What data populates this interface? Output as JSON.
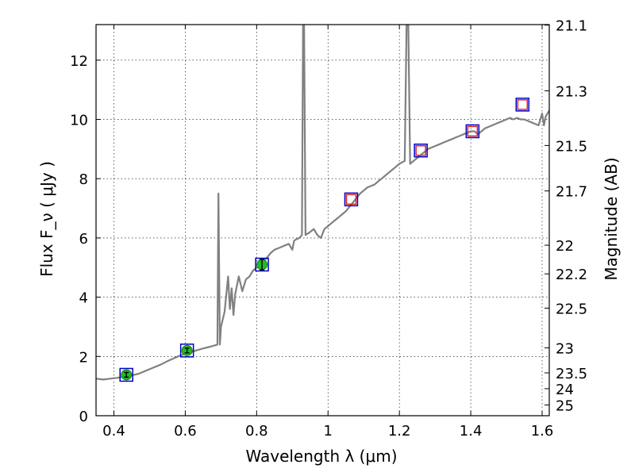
{
  "chart_data": {
    "type": "line",
    "xlabel": "Wavelength  λ (μm)",
    "ylabel": "Flux  F_ν  ( μJy )",
    "ylabel_right": "Magnitude (AB)",
    "xlim": [
      0.35,
      1.62
    ],
    "ylim": [
      0,
      13.2
    ],
    "grid": true,
    "x_ticks": [
      0.4,
      0.6,
      0.8,
      1.0,
      1.2,
      1.4,
      1.6
    ],
    "x_tick_labels": [
      "0.4",
      "0.6",
      "0.8",
      "1",
      "1.2",
      "1.4",
      "1.6"
    ],
    "y_ticks": [
      0,
      2,
      4,
      6,
      8,
      10,
      12
    ],
    "y_tick_labels": [
      "0",
      "2",
      "4",
      "6",
      "8",
      "10",
      "12"
    ],
    "right_ticks": [
      {
        "label": "21.1",
        "mag": 21.1
      },
      {
        "label": "21.3",
        "mag": 21.3
      },
      {
        "label": "21.5",
        "mag": 21.5
      },
      {
        "label": "21.7",
        "mag": 21.7
      },
      {
        "label": "22",
        "mag": 22.0
      },
      {
        "label": "22.2",
        "mag": 22.2
      },
      {
        "label": "22.5",
        "mag": 22.5
      },
      {
        "label": "23",
        "mag": 23.0
      },
      {
        "label": "23.5",
        "mag": 23.5
      },
      {
        "label": "24",
        "mag": 24.0
      },
      {
        "label": "25",
        "mag": 25.0
      }
    ],
    "series": [
      {
        "type": "line",
        "color": "#808080",
        "points": [
          [
            0.35,
            1.25
          ],
          [
            0.37,
            1.22
          ],
          [
            0.39,
            1.25
          ],
          [
            0.41,
            1.28
          ],
          [
            0.43,
            1.32
          ],
          [
            0.45,
            1.36
          ],
          [
            0.47,
            1.42
          ],
          [
            0.49,
            1.52
          ],
          [
            0.51,
            1.62
          ],
          [
            0.53,
            1.72
          ],
          [
            0.55,
            1.84
          ],
          [
            0.57,
            1.95
          ],
          [
            0.59,
            2.05
          ],
          [
            0.61,
            2.12
          ],
          [
            0.63,
            2.2
          ],
          [
            0.65,
            2.27
          ],
          [
            0.67,
            2.33
          ],
          [
            0.685,
            2.38
          ],
          [
            0.69,
            2.4
          ],
          [
            0.693,
            7.5
          ],
          [
            0.697,
            2.4
          ],
          [
            0.7,
            3.0
          ],
          [
            0.71,
            3.5
          ],
          [
            0.72,
            4.7
          ],
          [
            0.725,
            3.6
          ],
          [
            0.73,
            4.3
          ],
          [
            0.735,
            3.4
          ],
          [
            0.74,
            4.1
          ],
          [
            0.75,
            4.7
          ],
          [
            0.76,
            4.2
          ],
          [
            0.77,
            4.6
          ],
          [
            0.78,
            4.7
          ],
          [
            0.79,
            4.9
          ],
          [
            0.8,
            5.0
          ],
          [
            0.81,
            5.1
          ],
          [
            0.82,
            5.2
          ],
          [
            0.83,
            5.35
          ],
          [
            0.84,
            5.5
          ],
          [
            0.85,
            5.6
          ],
          [
            0.86,
            5.65
          ],
          [
            0.87,
            5.7
          ],
          [
            0.88,
            5.75
          ],
          [
            0.89,
            5.8
          ],
          [
            0.9,
            5.6
          ],
          [
            0.905,
            5.9
          ],
          [
            0.91,
            5.95
          ],
          [
            0.92,
            6.0
          ],
          [
            0.927,
            6.1
          ],
          [
            0.93,
            13.2
          ],
          [
            0.933,
            13.2
          ],
          [
            0.937,
            6.1
          ],
          [
            0.95,
            6.2
          ],
          [
            0.96,
            6.3
          ],
          [
            0.97,
            6.1
          ],
          [
            0.98,
            6.0
          ],
          [
            0.99,
            6.3
          ],
          [
            1.0,
            6.4
          ],
          [
            1.01,
            6.5
          ],
          [
            1.02,
            6.6
          ],
          [
            1.03,
            6.7
          ],
          [
            1.04,
            6.8
          ],
          [
            1.05,
            6.9
          ],
          [
            1.06,
            7.05
          ],
          [
            1.07,
            7.2
          ],
          [
            1.08,
            7.35
          ],
          [
            1.09,
            7.5
          ],
          [
            1.1,
            7.6
          ],
          [
            1.11,
            7.7
          ],
          [
            1.12,
            7.75
          ],
          [
            1.13,
            7.8
          ],
          [
            1.14,
            7.9
          ],
          [
            1.15,
            8.0
          ],
          [
            1.16,
            8.1
          ],
          [
            1.17,
            8.2
          ],
          [
            1.18,
            8.3
          ],
          [
            1.19,
            8.4
          ],
          [
            1.2,
            8.5
          ],
          [
            1.215,
            8.6
          ],
          [
            1.22,
            13.2
          ],
          [
            1.225,
            13.2
          ],
          [
            1.23,
            8.5
          ],
          [
            1.24,
            8.6
          ],
          [
            1.25,
            8.7
          ],
          [
            1.26,
            8.8
          ],
          [
            1.27,
            8.9
          ],
          [
            1.28,
            9.0
          ],
          [
            1.29,
            9.05
          ],
          [
            1.3,
            9.1
          ],
          [
            1.31,
            9.15
          ],
          [
            1.32,
            9.2
          ],
          [
            1.33,
            9.25
          ],
          [
            1.34,
            9.3
          ],
          [
            1.35,
            9.35
          ],
          [
            1.36,
            9.4
          ],
          [
            1.37,
            9.45
          ],
          [
            1.38,
            9.5
          ],
          [
            1.39,
            9.55
          ],
          [
            1.4,
            9.6
          ],
          [
            1.41,
            9.6
          ],
          [
            1.42,
            9.5
          ],
          [
            1.43,
            9.6
          ],
          [
            1.44,
            9.7
          ],
          [
            1.45,
            9.75
          ],
          [
            1.46,
            9.8
          ],
          [
            1.47,
            9.85
          ],
          [
            1.48,
            9.9
          ],
          [
            1.49,
            9.95
          ],
          [
            1.5,
            10.0
          ],
          [
            1.51,
            10.05
          ],
          [
            1.52,
            10.0
          ],
          [
            1.53,
            10.05
          ],
          [
            1.54,
            10.0
          ],
          [
            1.55,
            10.0
          ],
          [
            1.56,
            9.95
          ],
          [
            1.57,
            9.9
          ],
          [
            1.58,
            9.85
          ],
          [
            1.59,
            9.8
          ],
          [
            1.6,
            10.2
          ],
          [
            1.605,
            9.8
          ],
          [
            1.61,
            10.1
          ],
          [
            1.62,
            10.3
          ]
        ]
      },
      {
        "type": "scatter",
        "marker": "circle",
        "color": "#22bb22",
        "edge": "#1a7a1a",
        "points": [
          {
            "x": 0.435,
            "y": 1.38,
            "err": 0.08
          },
          {
            "x": 0.605,
            "y": 2.2,
            "err": 0.08
          },
          {
            "x": 0.815,
            "y": 5.1,
            "err": 0.18
          }
        ]
      },
      {
        "type": "scatter",
        "marker": "square",
        "color": "#0000cc",
        "points": [
          {
            "x": 0.435,
            "y": 1.38
          },
          {
            "x": 0.605,
            "y": 2.2
          },
          {
            "x": 0.815,
            "y": 5.1
          },
          {
            "x": 1.065,
            "y": 7.3
          },
          {
            "x": 1.26,
            "y": 8.95
          },
          {
            "x": 1.405,
            "y": 9.6
          },
          {
            "x": 1.545,
            "y": 10.5
          }
        ]
      },
      {
        "type": "scatter",
        "marker": "square",
        "color": "#dd2222",
        "points": [
          {
            "x": 1.065,
            "y": 7.3
          },
          {
            "x": 1.26,
            "y": 8.95
          },
          {
            "x": 1.405,
            "y": 9.6
          },
          {
            "x": 1.545,
            "y": 10.5
          }
        ]
      }
    ]
  }
}
